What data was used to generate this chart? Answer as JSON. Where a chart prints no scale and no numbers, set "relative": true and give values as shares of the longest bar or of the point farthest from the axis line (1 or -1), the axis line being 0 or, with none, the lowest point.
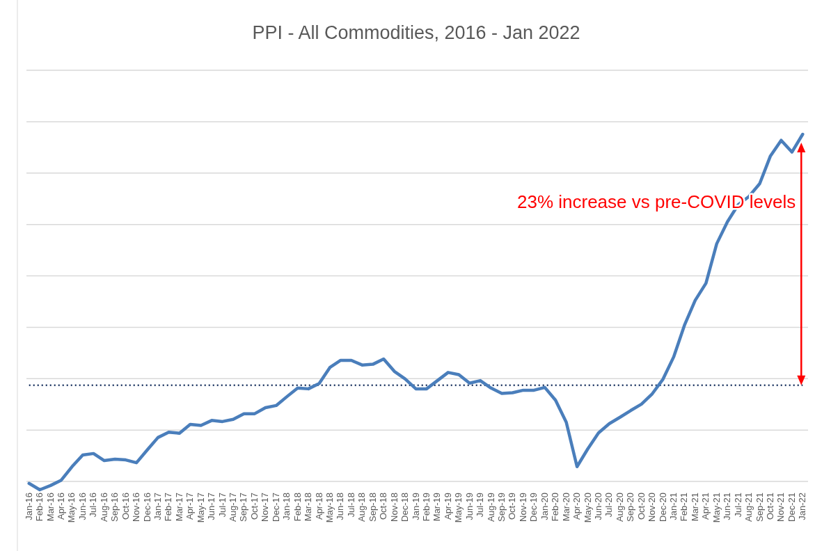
{
  "chart_data": {
    "type": "line",
    "title": "PPI - All Commodities,  2016 - Jan 2022",
    "relative": true,
    "grid": true,
    "marker": "none",
    "line_style": "solid",
    "categories": [
      "Jan-16",
      "Feb-16",
      "Mar-16",
      "Apr-16",
      "May-16",
      "Jun-16",
      "Jul-16",
      "Aug-16",
      "Sep-16",
      "Oct-16",
      "Nov-16",
      "Dec-16",
      "Jan-17",
      "Feb-17",
      "Mar-17",
      "Apr-17",
      "May-17",
      "Jun-17",
      "Jul-17",
      "Aug-17",
      "Sep-17",
      "Oct-17",
      "Nov-17",
      "Dec-17",
      "Jan-18",
      "Feb-18",
      "Mar-18",
      "Apr-18",
      "May-18",
      "Jun-18",
      "Jul-18",
      "Aug-18",
      "Sep-18",
      "Oct-18",
      "Nov-18",
      "Dec-18",
      "Jan-19",
      "Feb-19",
      "Mar-19",
      "Apr-19",
      "May-19",
      "Jun-19",
      "Jul-19",
      "Aug-19",
      "Sep-19",
      "Oct-19",
      "Nov-19",
      "Dec-19",
      "Jan-20",
      "Feb-20",
      "Mar-20",
      "Apr-20",
      "May-20",
      "Jun-20",
      "Jul-20",
      "Aug-20",
      "Sep-20",
      "Oct-20",
      "Nov-20",
      "Dec-20",
      "Jan-21",
      "Feb-21",
      "Mar-21",
      "Apr-21",
      "May-21",
      "Jun-21",
      "Jul-21",
      "Aug-21",
      "Sep-21",
      "Oct-21",
      "Nov-21",
      "Dec-21",
      "Jan-22"
    ],
    "series": [
      {
        "color": "#4a7ebb",
        "values": [
          0.018,
          0,
          0.012,
          0.027,
          0.065,
          0.098,
          0.102,
          0.082,
          0.086,
          0.084,
          0.076,
          0.112,
          0.147,
          0.162,
          0.159,
          0.184,
          0.181,
          0.195,
          0.192,
          0.198,
          0.214,
          0.214,
          0.231,
          0.237,
          0.262,
          0.286,
          0.284,
          0.299,
          0.344,
          0.364,
          0.364,
          0.351,
          0.353,
          0.368,
          0.333,
          0.312,
          0.284,
          0.284,
          0.307,
          0.33,
          0.324,
          0.3,
          0.307,
          0.286,
          0.271,
          0.273,
          0.28,
          0.28,
          0.288,
          0.252,
          0.19,
          0.065,
          0.115,
          0.16,
          0.186,
          0.204,
          0.223,
          0.241,
          0.27,
          0.311,
          0.374,
          0.463,
          0.533,
          0.581,
          0.692,
          0.754,
          0.802,
          0.825,
          0.861,
          0.939,
          0.983,
          0.95,
          1
        ]
      }
    ],
    "ref_lines": [
      {
        "axis": "y",
        "value": 0.294,
        "color": "#1f3864",
        "line_style": "dotted"
      }
    ],
    "annotations": [
      "23% increase vs pre-COVID levels"
    ]
  }
}
